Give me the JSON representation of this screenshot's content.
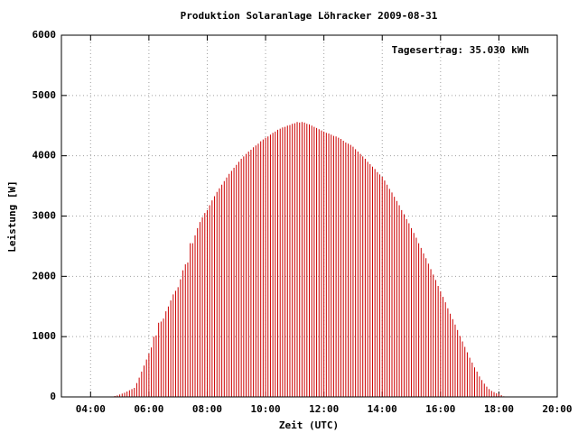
{
  "chart_data": {
    "type": "impulse",
    "title": "Produktion Solaranlage Löhracker 2009-08-31",
    "annotation": "Tagesertrag: 35.030 kWh",
    "xlabel": "Zeit (UTC)",
    "ylabel": "Leistung [W]",
    "color": "#cc0000",
    "grid": true,
    "xlim": [
      "03:00",
      "20:00"
    ],
    "xticks": [
      "04:00",
      "06:00",
      "08:00",
      "10:00",
      "12:00",
      "14:00",
      "16:00",
      "18:00",
      "20:00"
    ],
    "ylim": [
      0,
      6000
    ],
    "yticks": [
      0,
      1000,
      2000,
      3000,
      4000,
      5000,
      6000
    ],
    "x": [
      "04:45",
      "04:50",
      "04:55",
      "05:00",
      "05:05",
      "05:10",
      "05:15",
      "05:20",
      "05:25",
      "05:30",
      "05:35",
      "05:40",
      "05:45",
      "05:50",
      "05:55",
      "06:00",
      "06:05",
      "06:10",
      "06:15",
      "06:20",
      "06:25",
      "06:30",
      "06:35",
      "06:40",
      "06:45",
      "06:50",
      "06:55",
      "07:00",
      "07:05",
      "07:10",
      "07:15",
      "07:20",
      "07:25",
      "07:30",
      "07:35",
      "07:40",
      "07:45",
      "07:50",
      "07:55",
      "08:00",
      "08:05",
      "08:10",
      "08:15",
      "08:20",
      "08:25",
      "08:30",
      "08:35",
      "08:40",
      "08:45",
      "08:50",
      "08:55",
      "09:00",
      "09:05",
      "09:10",
      "09:15",
      "09:20",
      "09:25",
      "09:30",
      "09:35",
      "09:40",
      "09:45",
      "09:50",
      "09:55",
      "10:00",
      "10:05",
      "10:10",
      "10:15",
      "10:20",
      "10:25",
      "10:30",
      "10:35",
      "10:40",
      "10:45",
      "10:50",
      "10:55",
      "11:00",
      "11:05",
      "11:10",
      "11:15",
      "11:20",
      "11:25",
      "11:30",
      "11:35",
      "11:40",
      "11:45",
      "11:50",
      "11:55",
      "12:00",
      "12:05",
      "12:10",
      "12:15",
      "12:20",
      "12:25",
      "12:30",
      "12:35",
      "12:40",
      "12:45",
      "12:50",
      "12:55",
      "13:00",
      "13:05",
      "13:10",
      "13:15",
      "13:20",
      "13:25",
      "13:30",
      "13:35",
      "13:40",
      "13:45",
      "13:50",
      "13:55",
      "14:00",
      "14:05",
      "14:10",
      "14:15",
      "14:20",
      "14:25",
      "14:30",
      "14:35",
      "14:40",
      "14:45",
      "14:50",
      "14:55",
      "15:00",
      "15:05",
      "15:10",
      "15:15",
      "15:20",
      "15:25",
      "15:30",
      "15:35",
      "15:40",
      "15:45",
      "15:50",
      "15:55",
      "16:00",
      "16:05",
      "16:10",
      "16:15",
      "16:20",
      "16:25",
      "16:30",
      "16:35",
      "16:40",
      "16:45",
      "16:50",
      "16:55",
      "17:00",
      "17:05",
      "17:10",
      "17:15",
      "17:20",
      "17:25",
      "17:30",
      "17:35",
      "17:40",
      "17:45",
      "17:50",
      "17:55",
      "18:00",
      "18:05",
      "18:10"
    ],
    "values": [
      5,
      15,
      25,
      40,
      55,
      70,
      90,
      110,
      130,
      150,
      230,
      320,
      420,
      520,
      620,
      720,
      820,
      1000,
      1020,
      1230,
      1250,
      1300,
      1420,
      1500,
      1600,
      1700,
      1760,
      1820,
      1950,
      2100,
      2200,
      2230,
      2550,
      2550,
      2680,
      2800,
      2900,
      2980,
      3050,
      3100,
      3180,
      3260,
      3330,
      3400,
      3460,
      3520,
      3580,
      3640,
      3700,
      3750,
      3800,
      3850,
      3900,
      3950,
      3990,
      4030,
      4070,
      4100,
      4140,
      4170,
      4200,
      4240,
      4270,
      4300,
      4320,
      4350,
      4380,
      4400,
      4430,
      4450,
      4470,
      4480,
      4500,
      4510,
      4530,
      4540,
      4560,
      4550,
      4560,
      4550,
      4530,
      4520,
      4500,
      4480,
      4460,
      4440,
      4420,
      4400,
      4380,
      4370,
      4350,
      4330,
      4320,
      4300,
      4280,
      4250,
      4220,
      4200,
      4180,
      4150,
      4110,
      4070,
      4030,
      3990,
      3950,
      3900,
      3860,
      3820,
      3780,
      3730,
      3690,
      3650,
      3590,
      3520,
      3450,
      3390,
      3320,
      3250,
      3180,
      3100,
      3030,
      2950,
      2880,
      2800,
      2720,
      2640,
      2550,
      2470,
      2380,
      2300,
      2210,
      2120,
      2030,
      1940,
      1840,
      1750,
      1660,
      1570,
      1470,
      1380,
      1290,
      1200,
      1110,
      1010,
      920,
      830,
      740,
      650,
      570,
      490,
      420,
      340,
      280,
      220,
      170,
      130,
      100,
      80,
      60,
      50,
      30,
      10
    ]
  }
}
